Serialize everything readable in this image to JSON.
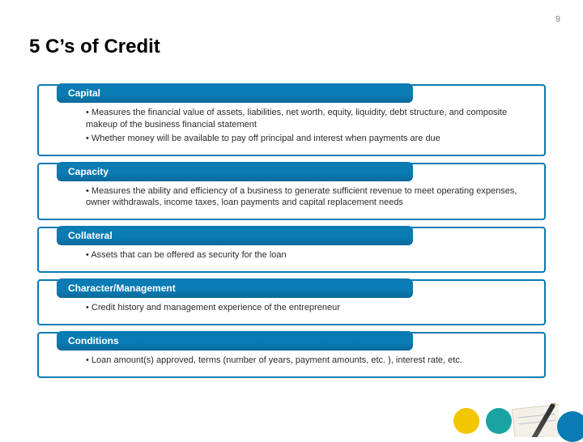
{
  "page_number": "9",
  "title": "5 C’s of Credit",
  "colors": {
    "header_bg": "#0a7bb3",
    "border": "#0a7bb3",
    "dot_yellow": "#f2c600",
    "dot_teal": "#1aa3a3",
    "dot_blue": "#0a7bb3"
  },
  "sections": [
    {
      "heading": "Capital",
      "bullets": [
        "Measures the financial value of assets, liabilities, net worth, equity, liquidity, debt structure, and composite makeup of the business financial statement",
        "Whether money will be available to pay off principal and interest when payments are due"
      ]
    },
    {
      "heading": "Capacity",
      "bullets": [
        "Measures the ability and efficiency of a business to generate sufficient revenue to meet operating expenses, owner withdrawals, income taxes, loan payments and capital replacement needs"
      ]
    },
    {
      "heading": "Collateral",
      "bullets": [
        "Assets that can be offered as security for the loan"
      ]
    },
    {
      "heading": "Character/Management",
      "bullets": [
        "Credit history and management experience of the entrepreneur"
      ]
    },
    {
      "heading": "Conditions",
      "bullets": [
        "Loan amount(s) approved, terms (number of years, payment amounts, etc. ), interest rate, etc."
      ]
    }
  ]
}
